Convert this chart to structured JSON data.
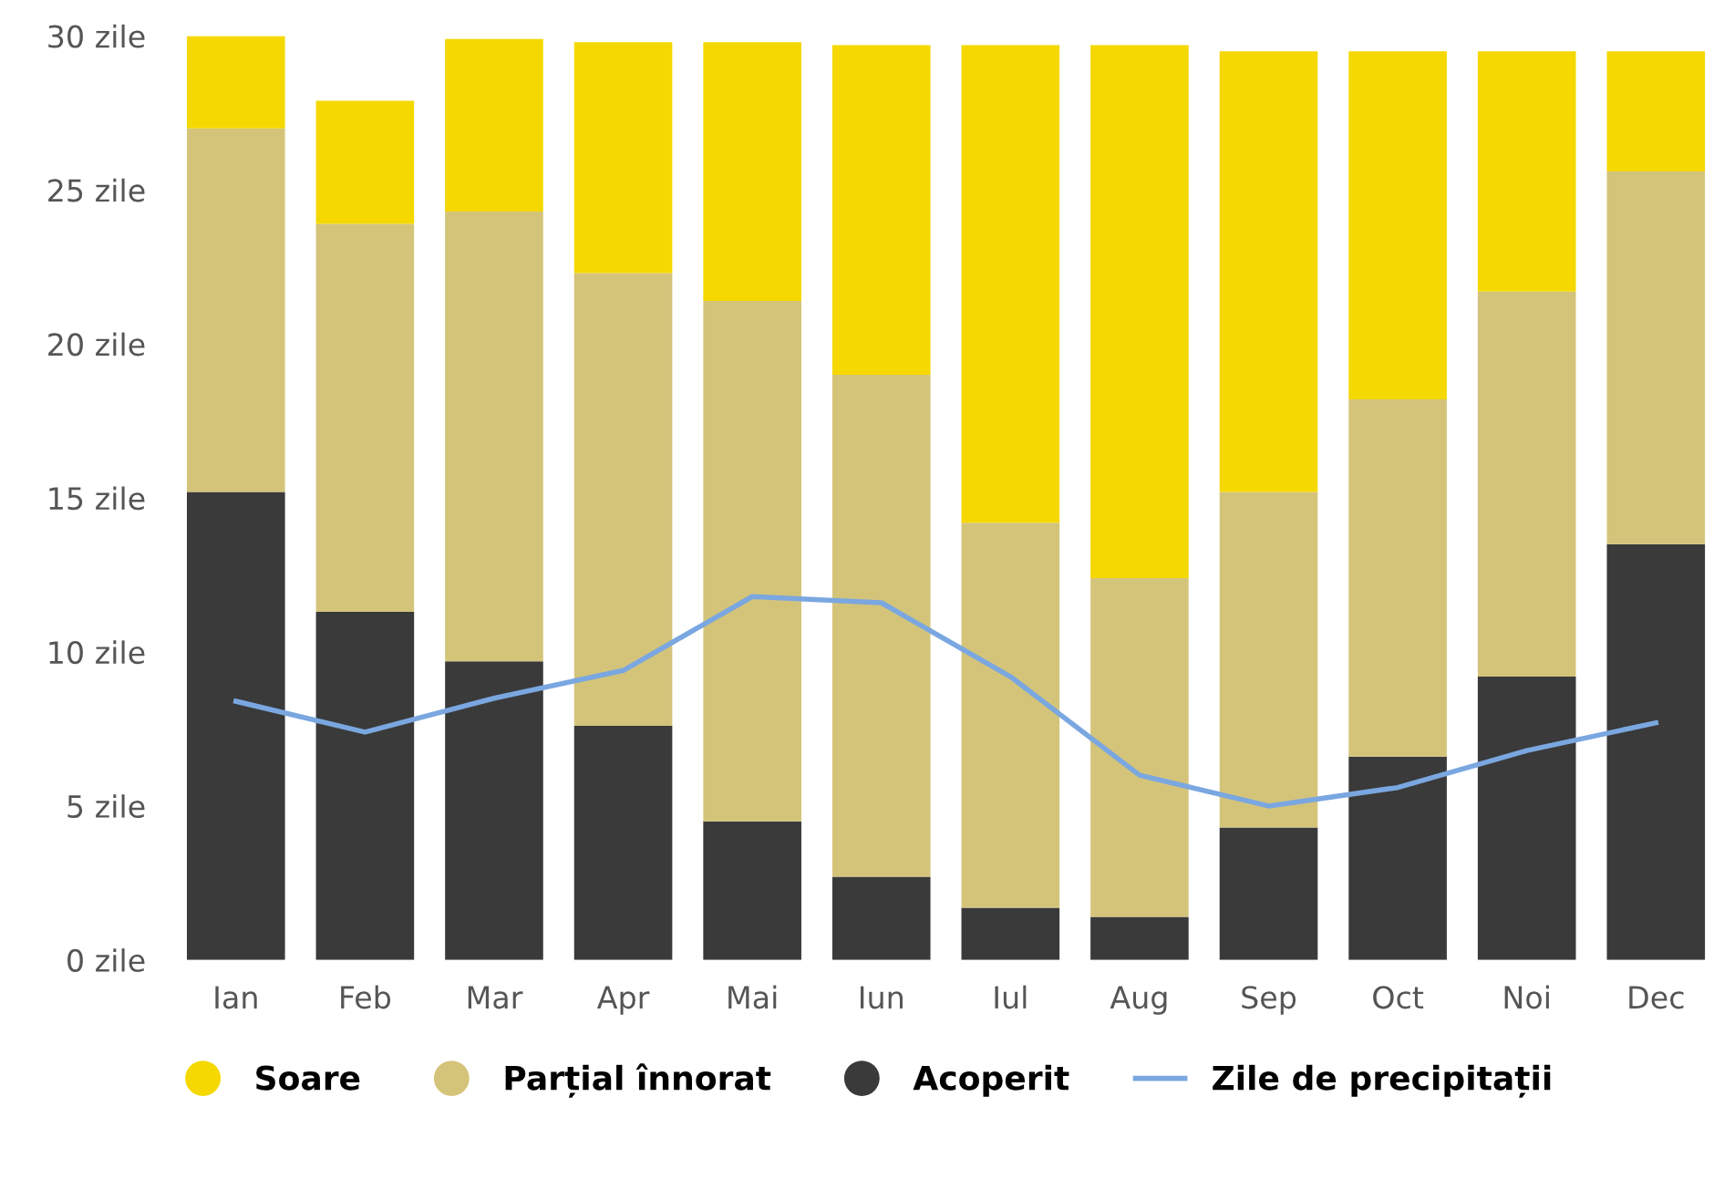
{
  "chart_data": {
    "type": "bar",
    "stacked": true,
    "categories": [
      "Ian",
      "Feb",
      "Mar",
      "Apr",
      "Mai",
      "Iun",
      "Iul",
      "Aug",
      "Sep",
      "Oct",
      "Noi",
      "Dec"
    ],
    "series": [
      {
        "name": "Acoperit",
        "color": "#3a3a3a",
        "values": [
          15.2,
          11.3,
          9.7,
          7.6,
          4.5,
          2.7,
          1.7,
          1.4,
          4.3,
          6.6,
          9.2,
          13.5
        ]
      },
      {
        "name": "Parțial înnorat",
        "color": "#d4c47a",
        "values": [
          11.8,
          12.6,
          14.6,
          14.7,
          16.9,
          16.3,
          12.5,
          11.0,
          10.9,
          11.6,
          12.5,
          12.1
        ]
      },
      {
        "name": "Soare",
        "color": "#f5d800",
        "values": [
          3.0,
          4.0,
          5.6,
          7.5,
          8.4,
          10.7,
          15.5,
          17.3,
          14.3,
          11.3,
          7.8,
          3.9
        ]
      },
      {
        "name": "Zile de precipitații",
        "type": "line",
        "color": "#7aa7e0",
        "values": [
          8.4,
          7.4,
          8.5,
          9.4,
          11.8,
          11.6,
          9.2,
          6.0,
          5.0,
          5.6,
          6.8,
          7.7
        ]
      }
    ],
    "ylim": [
      0,
      30
    ],
    "yticks": [
      {
        "value": 0,
        "label": "0 zile"
      },
      {
        "value": 5,
        "label": "5 zile"
      },
      {
        "value": 10,
        "label": "10 zile"
      },
      {
        "value": 15,
        "label": "15 zile"
      },
      {
        "value": 20,
        "label": "20 zile"
      },
      {
        "value": 25,
        "label": "25 zile"
      },
      {
        "value": 30,
        "label": "30 zile"
      }
    ],
    "legend": "bottom"
  }
}
